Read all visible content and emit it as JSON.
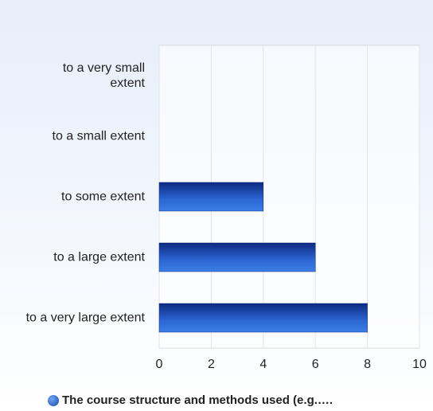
{
  "chart_data": {
    "type": "bar",
    "orientation": "horizontal",
    "categories": [
      "to a very small extent",
      "to a small extent",
      "to some extent",
      "to a large extent",
      "to a very large extent"
    ],
    "series": [
      {
        "name": "The course structure and methods used (e.g.….",
        "color": "#1f4fc0",
        "values": [
          0,
          0,
          4,
          6,
          8
        ]
      }
    ],
    "xlim": [
      0,
      10
    ],
    "xticks": [
      0,
      2,
      4,
      6,
      8,
      10
    ],
    "grid": true,
    "legend": "bottom"
  }
}
